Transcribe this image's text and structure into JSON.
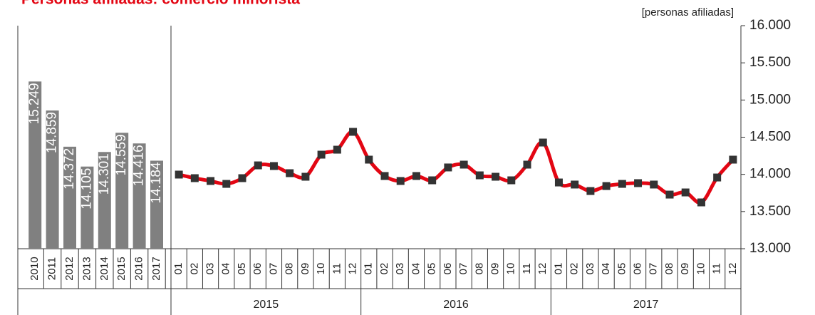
{
  "chart_data": [
    {
      "type": "bar",
      "title": "Personas afiliadas: comercio minorista",
      "color": "#808080",
      "categories": [
        "2010",
        "2011",
        "2012",
        "2013",
        "2014",
        "2015",
        "2016",
        "2017"
      ],
      "values": [
        15249,
        14859,
        14372,
        14105,
        14301,
        14559,
        14416,
        14184
      ],
      "value_labels": [
        "15.249",
        "14.859",
        "14.372",
        "14.105",
        "14.301",
        "14.559",
        "14.416",
        "14.184"
      ]
    },
    {
      "type": "line",
      "y_label": "[personas afiliadas]",
      "color": "#e30613",
      "marker_color": "#333333",
      "categories": [
        "01",
        "02",
        "03",
        "04",
        "05",
        "06",
        "07",
        "08",
        "09",
        "10",
        "11",
        "12",
        "01",
        "02",
        "03",
        "04",
        "05",
        "06",
        "07",
        "08",
        "09",
        "10",
        "11",
        "12",
        "01",
        "02",
        "03",
        "04",
        "05",
        "06",
        "07",
        "08",
        "09",
        "10",
        "11",
        "12"
      ],
      "groups": [
        "2015",
        "2016",
        "2017"
      ],
      "values": [
        13997,
        13949,
        13911,
        13872,
        13949,
        14121,
        14112,
        14016,
        13968,
        14265,
        14332,
        14572,
        14198,
        13978,
        13911,
        13978,
        13920,
        14093,
        14131,
        13987,
        13968,
        13920,
        14131,
        14428,
        13891,
        13863,
        13776,
        13843,
        13872,
        13882,
        13863,
        13728,
        13757,
        13623,
        13958,
        14198
      ],
      "ylim": [
        13000,
        16000
      ],
      "yticks": [
        {
          "value": 13000,
          "label": "13.000"
        },
        {
          "value": 13500,
          "label": "13.500"
        },
        {
          "value": 14000,
          "label": "14.000"
        },
        {
          "value": 14500,
          "label": "14.500"
        },
        {
          "value": 15000,
          "label": "15.000"
        },
        {
          "value": 15500,
          "label": "15.500"
        },
        {
          "value": 16000,
          "label": "16.000"
        }
      ]
    }
  ]
}
